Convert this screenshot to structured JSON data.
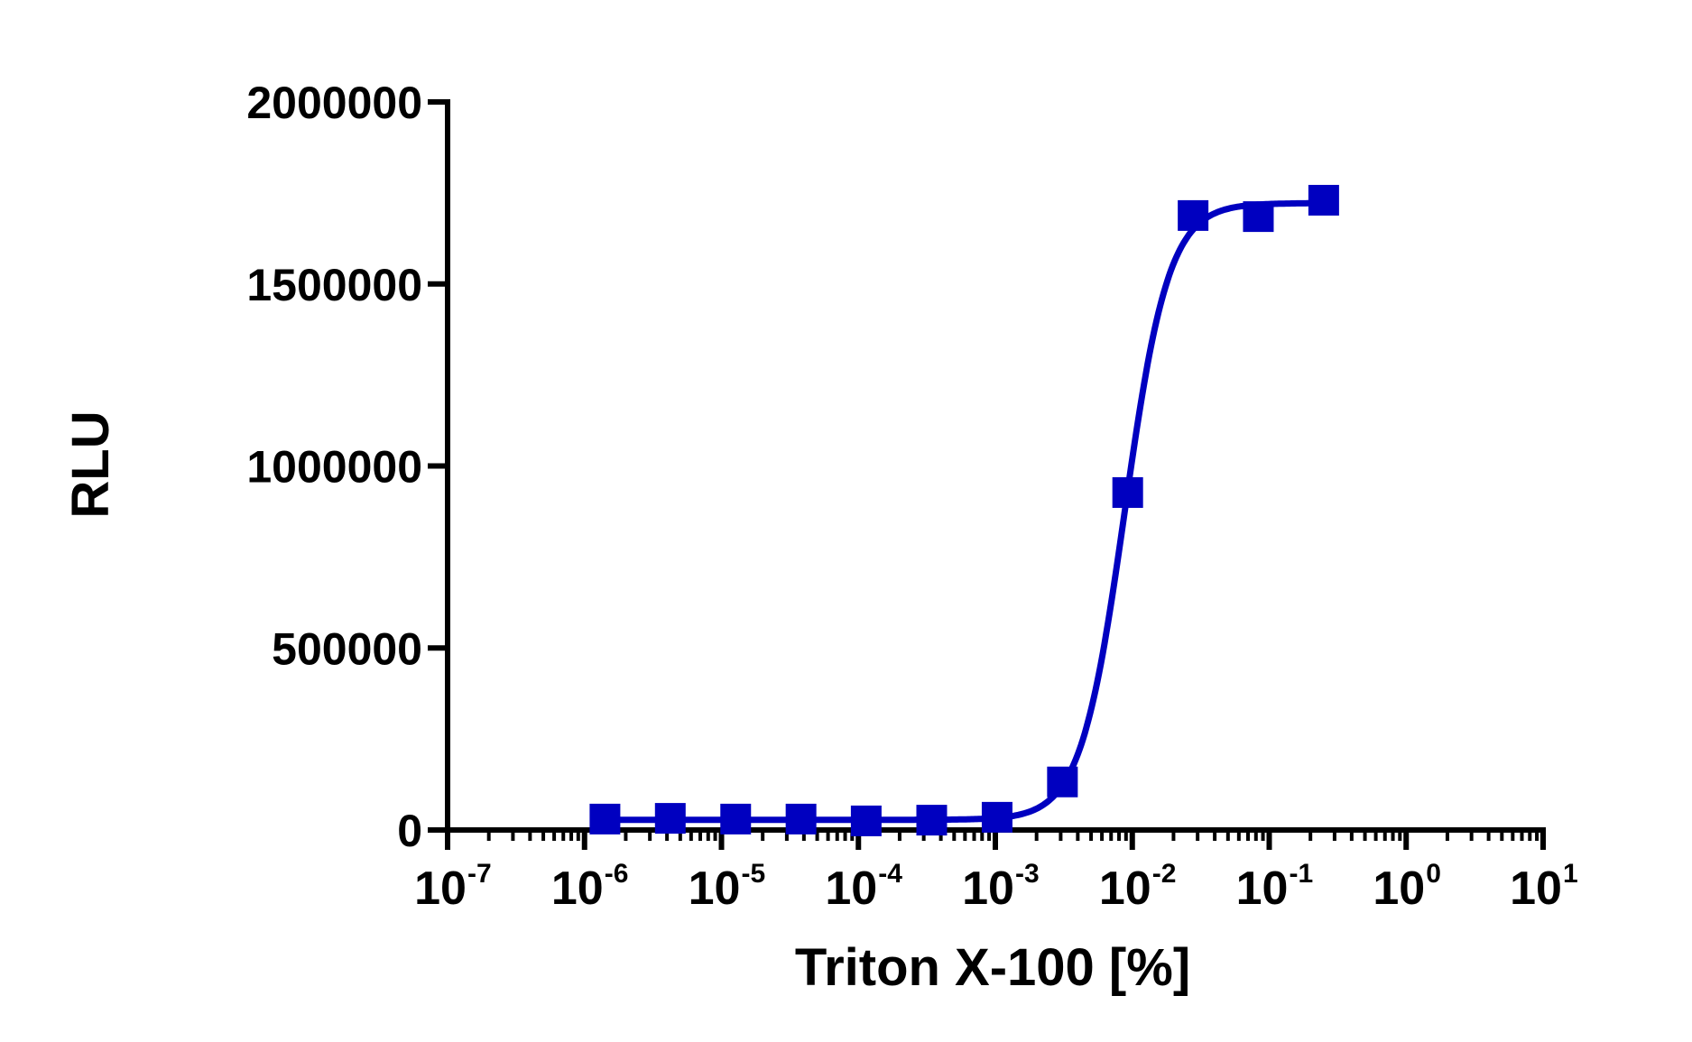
{
  "chart_data": {
    "type": "scatter",
    "xlabel": "Triton X-100 [%]",
    "ylabel": "RLU",
    "x_scale": "log",
    "xlim": [
      1e-07,
      10
    ],
    "ylim": [
      0,
      2000000
    ],
    "x_tick_labels": [
      {
        "base": "10",
        "exp": "-7"
      },
      {
        "base": "10",
        "exp": "-6"
      },
      {
        "base": "10",
        "exp": "-5"
      },
      {
        "base": "10",
        "exp": "-4"
      },
      {
        "base": "10",
        "exp": "-3"
      },
      {
        "base": "10",
        "exp": "-2"
      },
      {
        "base": "10",
        "exp": "-1"
      },
      {
        "base": "10",
        "exp": "0"
      },
      {
        "base": "10",
        "exp": "1"
      }
    ],
    "y_ticks": [
      0,
      500000,
      1000000,
      1500000,
      2000000
    ],
    "y_tick_labels": [
      "0",
      "500000",
      "1000000",
      "1500000",
      "2000000"
    ],
    "grid": false,
    "color": "#0000c0",
    "marker": "square",
    "points": {
      "x": [
        1.41e-06,
        4.23e-06,
        1.27e-05,
        3.81e-05,
        0.000114,
        0.000343,
        0.00103,
        0.00309,
        0.00926,
        0.0278,
        0.0833,
        0.25
      ],
      "y": [
        30000,
        32000,
        30000,
        30000,
        25000,
        27000,
        35000,
        132000,
        927000,
        1688000,
        1685000,
        1730000
      ]
    },
    "fit_curve": {
      "model": "4PL",
      "bottom": 28000,
      "top": 1722000,
      "ec50": 0.0088,
      "hill": 2.7
    }
  }
}
